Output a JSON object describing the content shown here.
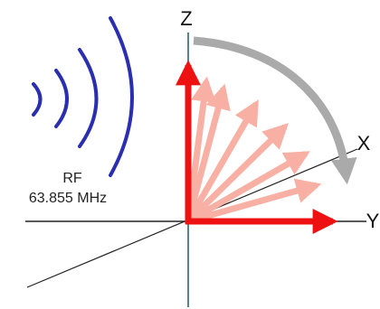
{
  "axes": {
    "z": "Z",
    "x": "X",
    "y": "Y"
  },
  "rf": {
    "label": "RF",
    "frequency": "63.855 MHz"
  }
}
